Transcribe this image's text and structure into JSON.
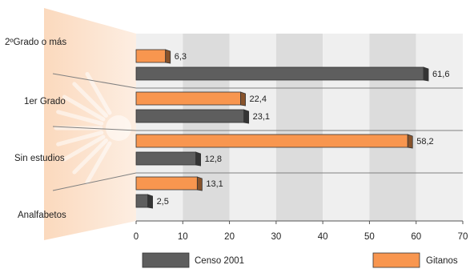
{
  "chart_data": {
    "type": "bar",
    "orientation": "horizontal",
    "categories": [
      "2ºGrado o más",
      "1er Grado",
      "Sin estudios",
      "Analfabetos"
    ],
    "series": [
      {
        "name": "Gitanos",
        "color": "#F8964F",
        "values": [
          6.3,
          22.4,
          58.2,
          13.1
        ],
        "value_labels": [
          "6,3",
          "22,4",
          "58,2",
          "13,1"
        ]
      },
      {
        "name": "Censo 2001",
        "color": "#5E5E5E",
        "values": [
          61.6,
          23.1,
          12.8,
          2.5
        ],
        "value_labels": [
          "61,6",
          "23,1",
          "12,8",
          "2,5"
        ]
      }
    ],
    "xlim": [
      0,
      70
    ],
    "xticks": [
      "0",
      "10",
      "20",
      "30",
      "40",
      "50",
      "60",
      "70"
    ],
    "grid": "alternating vertical bands",
    "legend": "bottom",
    "title": "",
    "xlabel": "",
    "ylabel": ""
  }
}
